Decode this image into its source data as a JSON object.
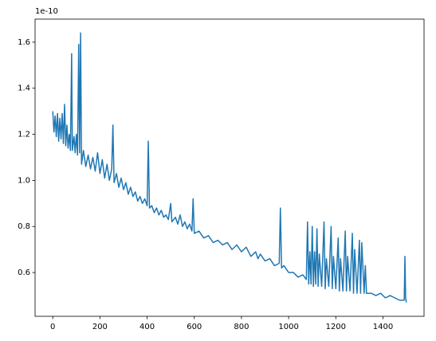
{
  "chart_data": {
    "type": "line",
    "y_offset_label": "1e-10",
    "color": "#1f77b4",
    "x": [
      0,
      5,
      10,
      15,
      20,
      25,
      30,
      35,
      40,
      45,
      50,
      55,
      60,
      65,
      70,
      75,
      80,
      83,
      90,
      95,
      100,
      105,
      110,
      114,
      118,
      122,
      130,
      140,
      150,
      160,
      170,
      180,
      190,
      200,
      210,
      220,
      230,
      240,
      250,
      255,
      260,
      270,
      280,
      290,
      300,
      310,
      320,
      330,
      340,
      350,
      360,
      370,
      380,
      390,
      400,
      405,
      410,
      420,
      430,
      440,
      450,
      460,
      470,
      480,
      490,
      500,
      505,
      520,
      530,
      540,
      550,
      560,
      570,
      580,
      590,
      595,
      600,
      620,
      640,
      660,
      680,
      700,
      720,
      740,
      760,
      780,
      800,
      820,
      840,
      860,
      870,
      880,
      900,
      920,
      940,
      960,
      965,
      970,
      980,
      1000,
      1020,
      1040,
      1060,
      1075,
      1080,
      1085,
      1090,
      1095,
      1100,
      1105,
      1110,
      1115,
      1120,
      1125,
      1130,
      1140,
      1150,
      1155,
      1160,
      1170,
      1180,
      1185,
      1190,
      1200,
      1210,
      1215,
      1220,
      1230,
      1240,
      1245,
      1250,
      1260,
      1270,
      1275,
      1280,
      1290,
      1300,
      1305,
      1310,
      1320,
      1325,
      1330,
      1350,
      1370,
      1390,
      1410,
      1430,
      1450,
      1470,
      1490,
      1493,
      1496,
      1499
    ],
    "values": [
      1.3,
      1.21,
      1.28,
      1.19,
      1.29,
      1.17,
      1.27,
      1.18,
      1.29,
      1.16,
      1.33,
      1.15,
      1.24,
      1.14,
      1.2,
      1.13,
      1.55,
      1.13,
      1.19,
      1.12,
      1.2,
      1.11,
      1.59,
      1.12,
      1.64,
      1.07,
      1.13,
      1.06,
      1.11,
      1.05,
      1.1,
      1.04,
      1.12,
      1.03,
      1.09,
      1.01,
      1.07,
      1.0,
      1.05,
      1.24,
      0.99,
      1.03,
      0.97,
      1.01,
      0.96,
      0.99,
      0.94,
      0.97,
      0.93,
      0.95,
      0.91,
      0.93,
      0.9,
      0.92,
      0.89,
      1.17,
      0.88,
      0.89,
      0.86,
      0.88,
      0.85,
      0.87,
      0.84,
      0.85,
      0.83,
      0.9,
      0.82,
      0.84,
      0.81,
      0.85,
      0.8,
      0.82,
      0.79,
      0.81,
      0.78,
      0.92,
      0.77,
      0.78,
      0.75,
      0.76,
      0.73,
      0.74,
      0.72,
      0.73,
      0.7,
      0.72,
      0.69,
      0.71,
      0.67,
      0.69,
      0.66,
      0.68,
      0.65,
      0.66,
      0.63,
      0.64,
      0.88,
      0.62,
      0.63,
      0.6,
      0.6,
      0.58,
      0.59,
      0.57,
      0.82,
      0.55,
      0.69,
      0.55,
      0.8,
      0.54,
      0.69,
      0.55,
      0.79,
      0.54,
      0.68,
      0.54,
      0.82,
      0.53,
      0.66,
      0.54,
      0.8,
      0.53,
      0.67,
      0.53,
      0.75,
      0.52,
      0.66,
      0.52,
      0.78,
      0.52,
      0.67,
      0.52,
      0.77,
      0.51,
      0.7,
      0.51,
      0.74,
      0.51,
      0.73,
      0.51,
      0.63,
      0.51,
      0.51,
      0.5,
      0.51,
      0.49,
      0.5,
      0.49,
      0.48,
      0.48,
      0.67,
      0.49,
      0.47
    ],
    "xlim": [
      -75,
      1574
    ],
    "ylim": [
      0.41,
      1.7
    ],
    "xticks": [
      0,
      200,
      400,
      600,
      800,
      1000,
      1200,
      1400
    ],
    "yticks": [
      0.6,
      0.8,
      {
        "value": 1,
        "label": "1.0"
      },
      1.2,
      1.4,
      1.6
    ]
  }
}
